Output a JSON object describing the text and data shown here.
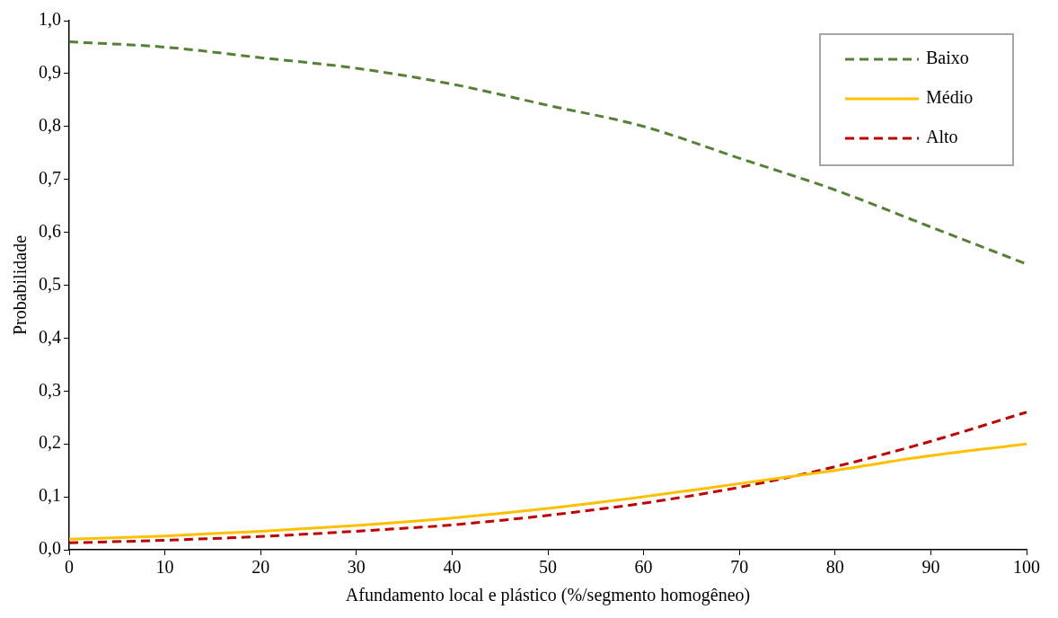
{
  "chart_data": {
    "type": "line",
    "xlabel": "Afundamento local e plástico (%/segmento homogêneo)",
    "ylabel": "Probabilidade",
    "x": [
      0,
      10,
      20,
      30,
      40,
      50,
      60,
      70,
      80,
      90,
      100
    ],
    "series": [
      {
        "name": "Baixo",
        "color": "#548235",
        "line_style": "dashed",
        "values": [
          0.96,
          0.95,
          0.93,
          0.91,
          0.88,
          0.84,
          0.8,
          0.74,
          0.68,
          0.61,
          0.54
        ]
      },
      {
        "name": "Médio",
        "color": "#ffc000",
        "line_style": "solid",
        "values": [
          0.02,
          0.026,
          0.035,
          0.046,
          0.06,
          0.078,
          0.1,
          0.125,
          0.15,
          0.178,
          0.2
        ]
      },
      {
        "name": "Alto",
        "color": "#c00000",
        "line_style": "dashed",
        "values": [
          0.013,
          0.018,
          0.025,
          0.035,
          0.047,
          0.065,
          0.088,
          0.118,
          0.157,
          0.205,
          0.26
        ]
      }
    ],
    "xlim": [
      0,
      100
    ],
    "xticks": [
      0,
      10,
      20,
      30,
      40,
      50,
      60,
      70,
      80,
      90,
      100
    ],
    "ylim": [
      0,
      1
    ],
    "yticks": [
      {
        "value": 0,
        "label": "0,0"
      },
      {
        "value": 0.1,
        "label": "0,1"
      },
      {
        "value": 0.2,
        "label": "0,2"
      },
      {
        "value": 0.3,
        "label": "0,3"
      },
      {
        "value": 0.4,
        "label": "0,4"
      },
      {
        "value": 0.5,
        "label": "0,5"
      },
      {
        "value": 0.6,
        "label": "0,6"
      },
      {
        "value": 0.7,
        "label": "0,7"
      },
      {
        "value": 0.8,
        "label": "0,8"
      },
      {
        "value": 0.9,
        "label": "0,9"
      },
      {
        "value": 1,
        "label": "1,0"
      }
    ],
    "grid": false,
    "legend": "top right",
    "marker": "none"
  }
}
